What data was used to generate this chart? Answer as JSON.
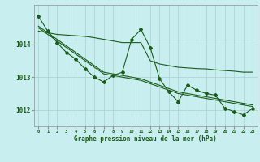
{
  "title": "Graphe pression niveau de la mer (hPa)",
  "background_color": "#c8eef0",
  "grid_color": "#a8d0d0",
  "line_color": "#1a5c1a",
  "ylim": [
    1011.5,
    1015.2
  ],
  "yticks": [
    1012,
    1013,
    1014
  ],
  "x_labels": [
    "0",
    "1",
    "2",
    "3",
    "4",
    "5",
    "6",
    "7",
    "8",
    "9",
    "10",
    "11",
    "12",
    "13",
    "14",
    "15",
    "16",
    "17",
    "18",
    "19",
    "20",
    "21",
    "22",
    "23"
  ],
  "y_main": [
    1014.85,
    1014.4,
    1014.05,
    1013.75,
    1013.55,
    1013.25,
    1013.0,
    1012.85,
    1013.05,
    1013.15,
    1014.15,
    1014.45,
    1013.9,
    1012.95,
    1012.55,
    1012.25,
    1012.75,
    1012.6,
    1012.5,
    1012.45,
    1012.05,
    1011.95,
    1011.85,
    1012.05
  ],
  "y_flat": [
    1014.4,
    1014.35,
    1014.3,
    1014.28,
    1014.26,
    1014.24,
    1014.2,
    1014.15,
    1014.1,
    1014.05,
    1014.05,
    1014.05,
    1013.5,
    1013.4,
    1013.35,
    1013.3,
    1013.28,
    1013.26,
    1013.25,
    1013.22,
    1013.2,
    1013.18,
    1013.15,
    1013.15
  ],
  "y_regr1": [
    1014.55,
    1014.35,
    1014.15,
    1013.95,
    1013.75,
    1013.55,
    1013.35,
    1013.15,
    1013.1,
    1013.05,
    1013.0,
    1012.95,
    1012.85,
    1012.75,
    1012.65,
    1012.55,
    1012.5,
    1012.45,
    1012.4,
    1012.35,
    1012.3,
    1012.25,
    1012.2,
    1012.15
  ],
  "y_regr2": [
    1014.5,
    1014.3,
    1014.1,
    1013.9,
    1013.7,
    1013.5,
    1013.3,
    1013.1,
    1013.05,
    1013.0,
    1012.95,
    1012.9,
    1012.8,
    1012.7,
    1012.6,
    1012.5,
    1012.45,
    1012.4,
    1012.35,
    1012.3,
    1012.25,
    1012.2,
    1012.15,
    1012.1
  ]
}
